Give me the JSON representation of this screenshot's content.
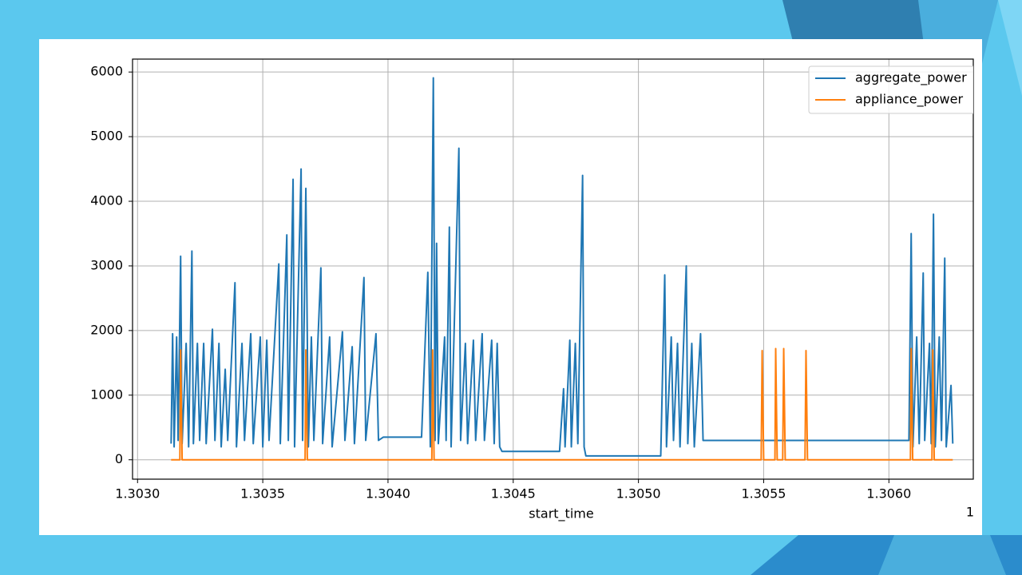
{
  "chart_data": {
    "type": "line",
    "xlabel": "start_time",
    "x_offset_label": "1",
    "xlim": [
      1.30298,
      1.306337
    ],
    "ylim": [
      -300,
      6200
    ],
    "xticks": [
      {
        "value": 1.303,
        "label": "1.3030"
      },
      {
        "value": 1.3035,
        "label": "1.3035"
      },
      {
        "value": 1.304,
        "label": "1.3040"
      },
      {
        "value": 1.3045,
        "label": "1.3045"
      },
      {
        "value": 1.305,
        "label": "1.3050"
      },
      {
        "value": 1.3055,
        "label": "1.3055"
      },
      {
        "value": 1.306,
        "label": "1.3060"
      }
    ],
    "yticks": [
      0,
      1000,
      2000,
      3000,
      4000,
      5000,
      6000
    ],
    "grid": true,
    "legend": "upper right",
    "series": [
      {
        "name": "aggregate_power",
        "color": "#1f77b4",
        "x": [
          1.303134,
          1.30314,
          1.303146,
          1.303156,
          1.303162,
          1.303172,
          1.303178,
          1.303194,
          1.303204,
          1.303217,
          1.303223,
          1.303239,
          1.303248,
          1.303264,
          1.303274,
          1.303299,
          1.303309,
          1.303325,
          1.303334,
          1.30335,
          1.30336,
          1.303389,
          1.303395,
          1.303417,
          1.303427,
          1.303452,
          1.303462,
          1.30349,
          1.3035,
          1.303516,
          1.303525,
          1.303564,
          1.30357,
          1.303596,
          1.303602,
          1.303621,
          1.303627,
          1.303653,
          1.303659,
          1.303672,
          1.303682,
          1.303694,
          1.303704,
          1.303732,
          1.303739,
          1.303767,
          1.303777,
          1.303818,
          1.303828,
          1.303857,
          1.303866,
          1.303904,
          1.303911,
          1.303952,
          1.303962,
          1.303981,
          1.304134,
          1.304159,
          1.304169,
          1.304181,
          1.304188,
          1.304194,
          1.304201,
          1.304226,
          1.304232,
          1.304245,
          1.304252,
          1.304283,
          1.30429,
          1.304309,
          1.304318,
          1.304341,
          1.30435,
          1.304376,
          1.304385,
          1.304414,
          1.304424,
          1.304436,
          1.304446,
          1.304455,
          1.304685,
          1.304701,
          1.304707,
          1.304726,
          1.304732,
          1.304748,
          1.304758,
          1.304777,
          1.304783,
          1.30479,
          1.305089,
          1.305105,
          1.305112,
          1.305131,
          1.30514,
          1.305156,
          1.305166,
          1.305191,
          1.305197,
          1.305213,
          1.305223,
          1.305248,
          1.305258,
          1.305274,
          1.30608,
          1.306089,
          1.306096,
          1.306111,
          1.306121,
          1.306137,
          1.306143,
          1.306162,
          1.306169,
          1.306178,
          1.306185,
          1.306201,
          1.30621,
          1.306223,
          1.306229,
          1.306248,
          1.306255
        ],
        "values": [
          250,
          1950,
          200,
          1900,
          300,
          3150,
          250,
          1800,
          200,
          3230,
          250,
          1800,
          300,
          1800,
          250,
          2020,
          300,
          1800,
          200,
          1400,
          300,
          2740,
          200,
          1800,
          300,
          1950,
          250,
          1900,
          200,
          1850,
          300,
          3030,
          250,
          3480,
          300,
          4340,
          200,
          4500,
          300,
          4200,
          200,
          1900,
          300,
          2970,
          250,
          1900,
          200,
          1980,
          300,
          1750,
          250,
          2820,
          300,
          1950,
          300,
          350,
          350,
          2900,
          200,
          5910,
          300,
          3350,
          250,
          1900,
          300,
          3600,
          200,
          4820,
          300,
          1800,
          250,
          1850,
          300,
          1950,
          300,
          1850,
          250,
          1800,
          200,
          130,
          130,
          1100,
          200,
          1850,
          200,
          1800,
          250,
          4400,
          200,
          60,
          60,
          2860,
          200,
          1900,
          300,
          1800,
          200,
          3000,
          250,
          1800,
          200,
          1950,
          300,
          300,
          300,
          3500,
          200,
          1900,
          250,
          2890,
          300,
          1800,
          250,
          3800,
          200,
          1900,
          300,
          3120,
          200,
          1150,
          250
        ]
      },
      {
        "name": "appliance_power",
        "color": "#ff7f0e",
        "x": [
          1.303134,
          1.303169,
          1.303172,
          1.303178,
          1.303669,
          1.303672,
          1.303678,
          1.304175,
          1.304178,
          1.304184,
          1.30549,
          1.305494,
          1.3055,
          1.305545,
          1.305548,
          1.305554,
          1.305576,
          1.30558,
          1.305586,
          1.305665,
          1.305669,
          1.305675,
          1.306086,
          1.306089,
          1.306095,
          1.306172,
          1.306175,
          1.306181,
          1.306255
        ],
        "values": [
          0,
          0,
          1700,
          0,
          0,
          1700,
          0,
          0,
          1700,
          0,
          0,
          1690,
          0,
          0,
          1720,
          0,
          0,
          1720,
          0,
          0,
          1690,
          0,
          0,
          1720,
          0,
          0,
          1700,
          0,
          0
        ]
      }
    ]
  }
}
